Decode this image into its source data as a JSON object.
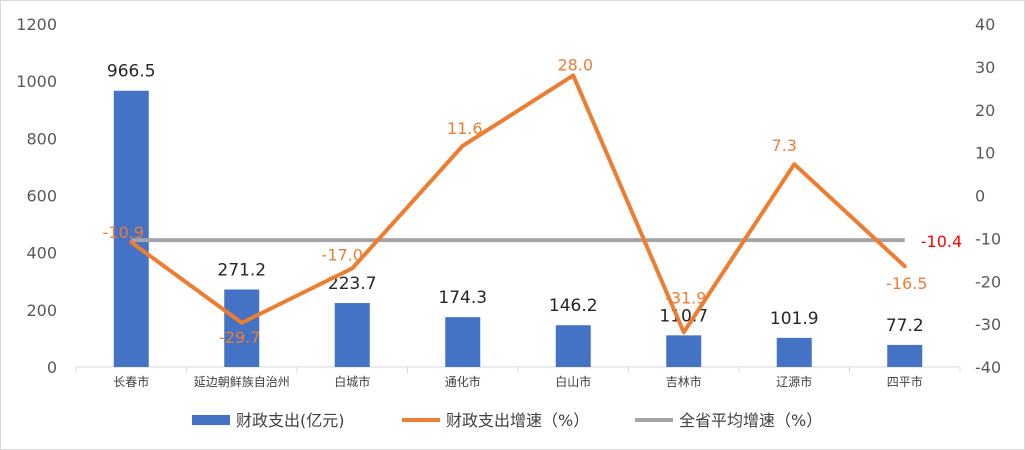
{
  "chart_data": {
    "type": "bar",
    "categories": [
      "长春市",
      "延边朝鲜族自治州",
      "白城市",
      "通化市",
      "白山市",
      "吉林市",
      "辽源市",
      "四平市"
    ],
    "series": [
      {
        "name": "财政支出(亿元)",
        "type": "bar",
        "axis": "left",
        "color": "#4472C4",
        "values": [
          966.5,
          271.2,
          223.7,
          174.3,
          146.2,
          110.7,
          101.9,
          77.2
        ],
        "labels": [
          "966.5",
          "271.2",
          "223.7",
          "174.3",
          "146.2",
          "110.7",
          "101.9",
          "77.2"
        ]
      },
      {
        "name": "财政支出增速（%）",
        "type": "line",
        "axis": "right",
        "color": "#ED7D31",
        "values": [
          -10.9,
          -29.7,
          -17.0,
          11.6,
          28.0,
          -31.9,
          7.3,
          -16.5
        ],
        "labels": [
          "-10.9",
          "-29.7",
          "-17.0",
          "11.6",
          "28.0",
          "-31.9",
          "7.3",
          "-16.5"
        ]
      },
      {
        "name": "全省平均增速（%）",
        "type": "line",
        "axis": "right",
        "color": "#A5A5A5",
        "values": [
          -10.4,
          -10.4,
          -10.4,
          -10.4,
          -10.4,
          -10.4,
          -10.4,
          -10.4
        ],
        "label": "-10.4",
        "label_color": "#FF0000"
      }
    ],
    "y_left": {
      "range": [
        0,
        1200
      ],
      "ticks": [
        "0",
        "200",
        "400",
        "600",
        "800",
        "1000",
        "1200"
      ],
      "tick_values": [
        0,
        200,
        400,
        600,
        800,
        1000,
        1200
      ]
    },
    "y_right": {
      "range": [
        -40,
        40
      ],
      "ticks": [
        "-40",
        "-30",
        "-20",
        "-10",
        "0",
        "10",
        "20",
        "30",
        "40"
      ],
      "tick_values": [
        -40,
        -30,
        -20,
        -10,
        0,
        10,
        20,
        30,
        40
      ]
    },
    "grid": false,
    "legend_position": "bottom"
  }
}
